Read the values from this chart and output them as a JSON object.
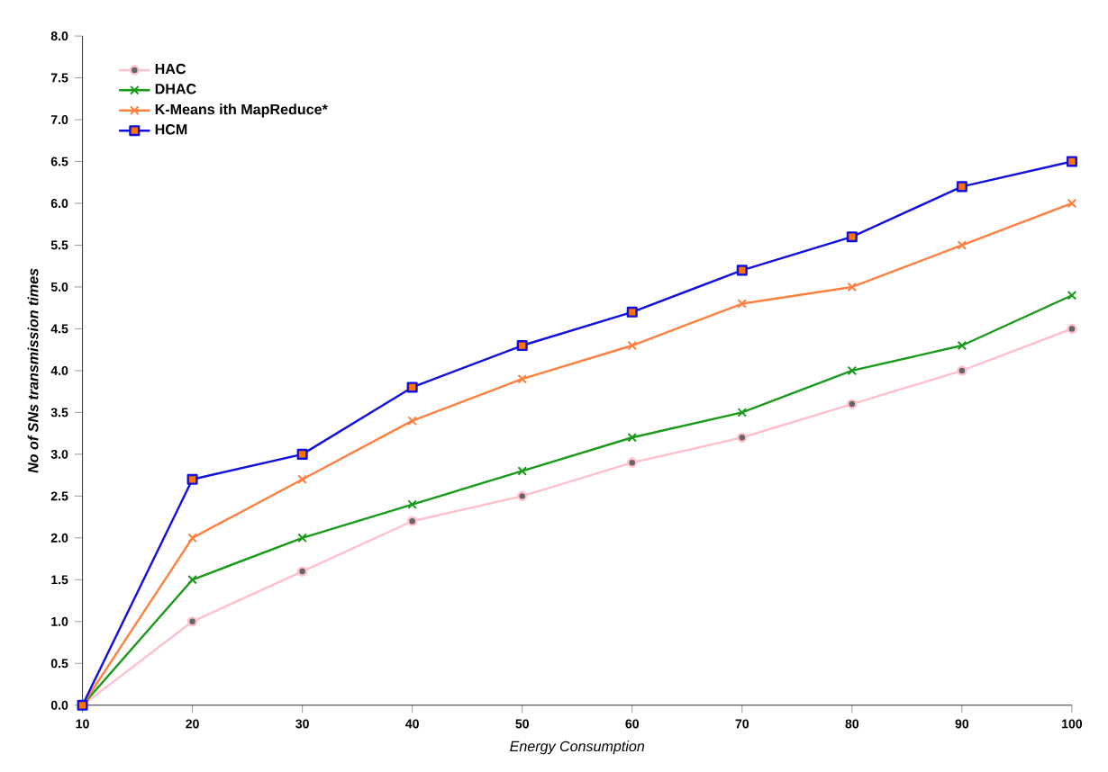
{
  "chart_data": {
    "type": "line",
    "xlabel": "Energy Consumption",
    "ylabel": "No of SNs transmission times",
    "x": [
      10,
      20,
      30,
      40,
      50,
      60,
      70,
      80,
      90,
      100
    ],
    "series": [
      {
        "name": "HAC",
        "color": "#ffc0cb",
        "marker": "circle",
        "values": [
          0,
          1.0,
          1.6,
          2.2,
          2.5,
          2.9,
          3.2,
          3.6,
          4.0,
          4.5
        ]
      },
      {
        "name": "DHAC",
        "color": "#1a9a1a",
        "marker": "cross",
        "values": [
          0,
          1.5,
          2.0,
          2.4,
          2.8,
          3.2,
          3.5,
          4.0,
          4.3,
          4.9
        ]
      },
      {
        "name": "K-Means ith MapReduce*",
        "color": "#ff7f3f",
        "marker": "cross",
        "values": [
          0,
          2.0,
          2.7,
          3.4,
          3.9,
          4.3,
          4.8,
          5.0,
          5.5,
          6.0
        ]
      },
      {
        "name": "HCM",
        "color": "#1010e0",
        "marker": "square",
        "values": [
          0,
          2.7,
          3.0,
          3.8,
          4.3,
          4.7,
          5.2,
          5.6,
          6.2,
          6.5
        ]
      }
    ],
    "xlim": [
      10,
      100
    ],
    "xticks": [
      10,
      20,
      30,
      40,
      50,
      60,
      70,
      80,
      90,
      100
    ],
    "ylim": [
      0,
      8
    ],
    "yticks": [
      {
        "value": 0,
        "label": "0.0"
      },
      {
        "value": 0.5,
        "label": "0.5"
      },
      {
        "value": 1,
        "label": "1.0"
      },
      {
        "value": 1.5,
        "label": "1.5"
      },
      {
        "value": 2,
        "label": "2.0"
      },
      {
        "value": 2.5,
        "label": "2.5"
      },
      {
        "value": 3,
        "label": "3.0"
      },
      {
        "value": 3.5,
        "label": "3.5"
      },
      {
        "value": 4,
        "label": "4.0"
      },
      {
        "value": 4.5,
        "label": "4.5"
      },
      {
        "value": 5,
        "label": "5.0"
      },
      {
        "value": 5.5,
        "label": "5.5"
      },
      {
        "value": 6,
        "label": "6.0"
      },
      {
        "value": 6.5,
        "label": "6.5"
      },
      {
        "value": 7,
        "label": "7.0"
      },
      {
        "value": 7.5,
        "label": "7.5"
      },
      {
        "value": 8,
        "label": "8.0"
      }
    ],
    "legend": "top left",
    "grid": false
  }
}
